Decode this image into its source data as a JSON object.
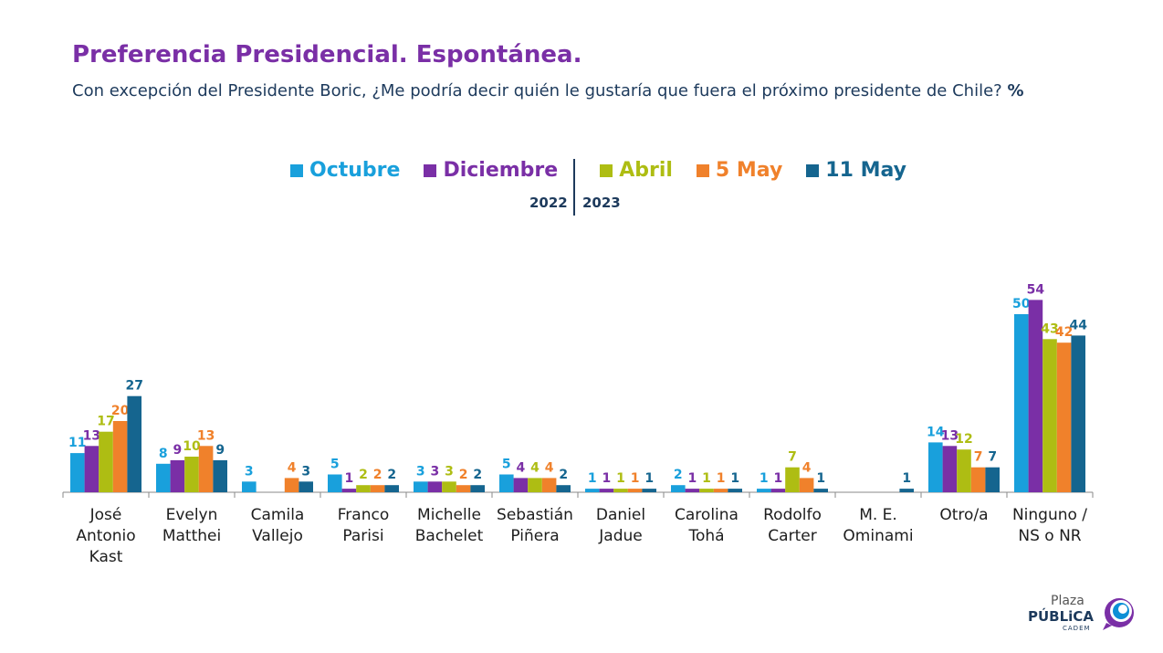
{
  "title": "Preferencia Presidencial. Espontánea.",
  "subtitle": "Con excepción del Presidente Boric, ¿Me podría decir quién le gustaría que fuera el próximo presidente de Chile?",
  "subtitle_unit": "%",
  "legend": {
    "year_left": "2022",
    "year_right": "2023"
  },
  "logo": {
    "plaza": "Plaza",
    "publica": "PÚBLiCA",
    "cadem": "CADEM",
    "colors": [
      "#7a2fa6",
      "#0d8fd6"
    ]
  },
  "chart_data": {
    "type": "bar",
    "title": "Preferencia Presidencial. Espontánea.",
    "xlabel": "",
    "ylabel": "",
    "grid": false,
    "legend_position": "top",
    "categories": [
      [
        "José",
        "Antonio",
        "Kast"
      ],
      [
        "Evelyn",
        "Matthei"
      ],
      [
        "Camila",
        "Vallejo"
      ],
      [
        "Franco",
        "Parisi"
      ],
      [
        "Michelle",
        "Bachelet"
      ],
      [
        "Sebastián",
        "Piñera"
      ],
      [
        "Daniel",
        "Jadue"
      ],
      [
        "Carolina",
        "Tohá"
      ],
      [
        "Rodolfo",
        "Carter"
      ],
      [
        "M. E.",
        "Ominami"
      ],
      [
        "Otro/a"
      ],
      [
        "Ninguno /",
        "NS o NR"
      ]
    ],
    "series": [
      {
        "name": "Octubre",
        "color": "#19a0dc",
        "values": [
          11,
          8,
          3,
          5,
          3,
          5,
          1,
          2,
          1,
          null,
          14,
          50
        ]
      },
      {
        "name": "Diciembre",
        "color": "#7a2fa6",
        "values": [
          13,
          9,
          null,
          1,
          3,
          4,
          1,
          1,
          1,
          null,
          13,
          54
        ]
      },
      {
        "name": "Abril",
        "color": "#aebd13",
        "values": [
          17,
          10,
          null,
          2,
          3,
          4,
          1,
          1,
          7,
          null,
          12,
          43
        ]
      },
      {
        "name": "5 May",
        "color": "#f0812b",
        "values": [
          20,
          13,
          4,
          2,
          2,
          4,
          1,
          1,
          4,
          null,
          7,
          42
        ]
      },
      {
        "name": "11 May",
        "color": "#15658f",
        "values": [
          27,
          9,
          3,
          2,
          2,
          2,
          1,
          1,
          1,
          1,
          7,
          44
        ]
      }
    ],
    "ylim": [
      0,
      54
    ]
  }
}
